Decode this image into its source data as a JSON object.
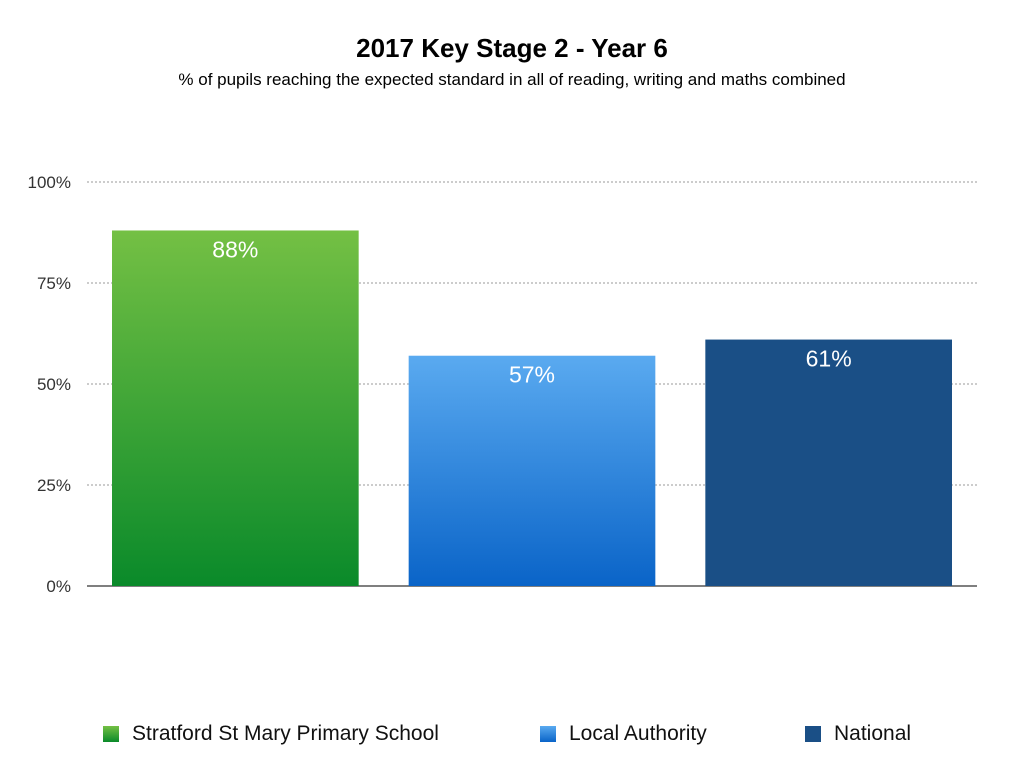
{
  "chart_data": {
    "type": "bar",
    "title": "2017 Key Stage 2 - Year 6",
    "subtitle": "% of pupils reaching the expected standard in all of reading, writing and maths combined",
    "categories": [
      "Stratford St Mary Primary School",
      "Local Authority",
      "National"
    ],
    "values": [
      88,
      57,
      61
    ],
    "data_labels": [
      "88%",
      "57%",
      "61%"
    ],
    "colors": [
      {
        "top": "#74c044",
        "bottom": "#0a8a2a"
      },
      {
        "top": "#5aaaf0",
        "bottom": "#0a64c8"
      },
      {
        "top": "#1a4f86",
        "bottom": "#1a4f86"
      }
    ],
    "ylim": [
      0,
      100
    ],
    "yticks": [
      0,
      25,
      50,
      75,
      100
    ],
    "ytick_labels": [
      "0%",
      "25%",
      "50%",
      "75%",
      "100%"
    ],
    "grid": true,
    "legend_position": "bottom"
  }
}
